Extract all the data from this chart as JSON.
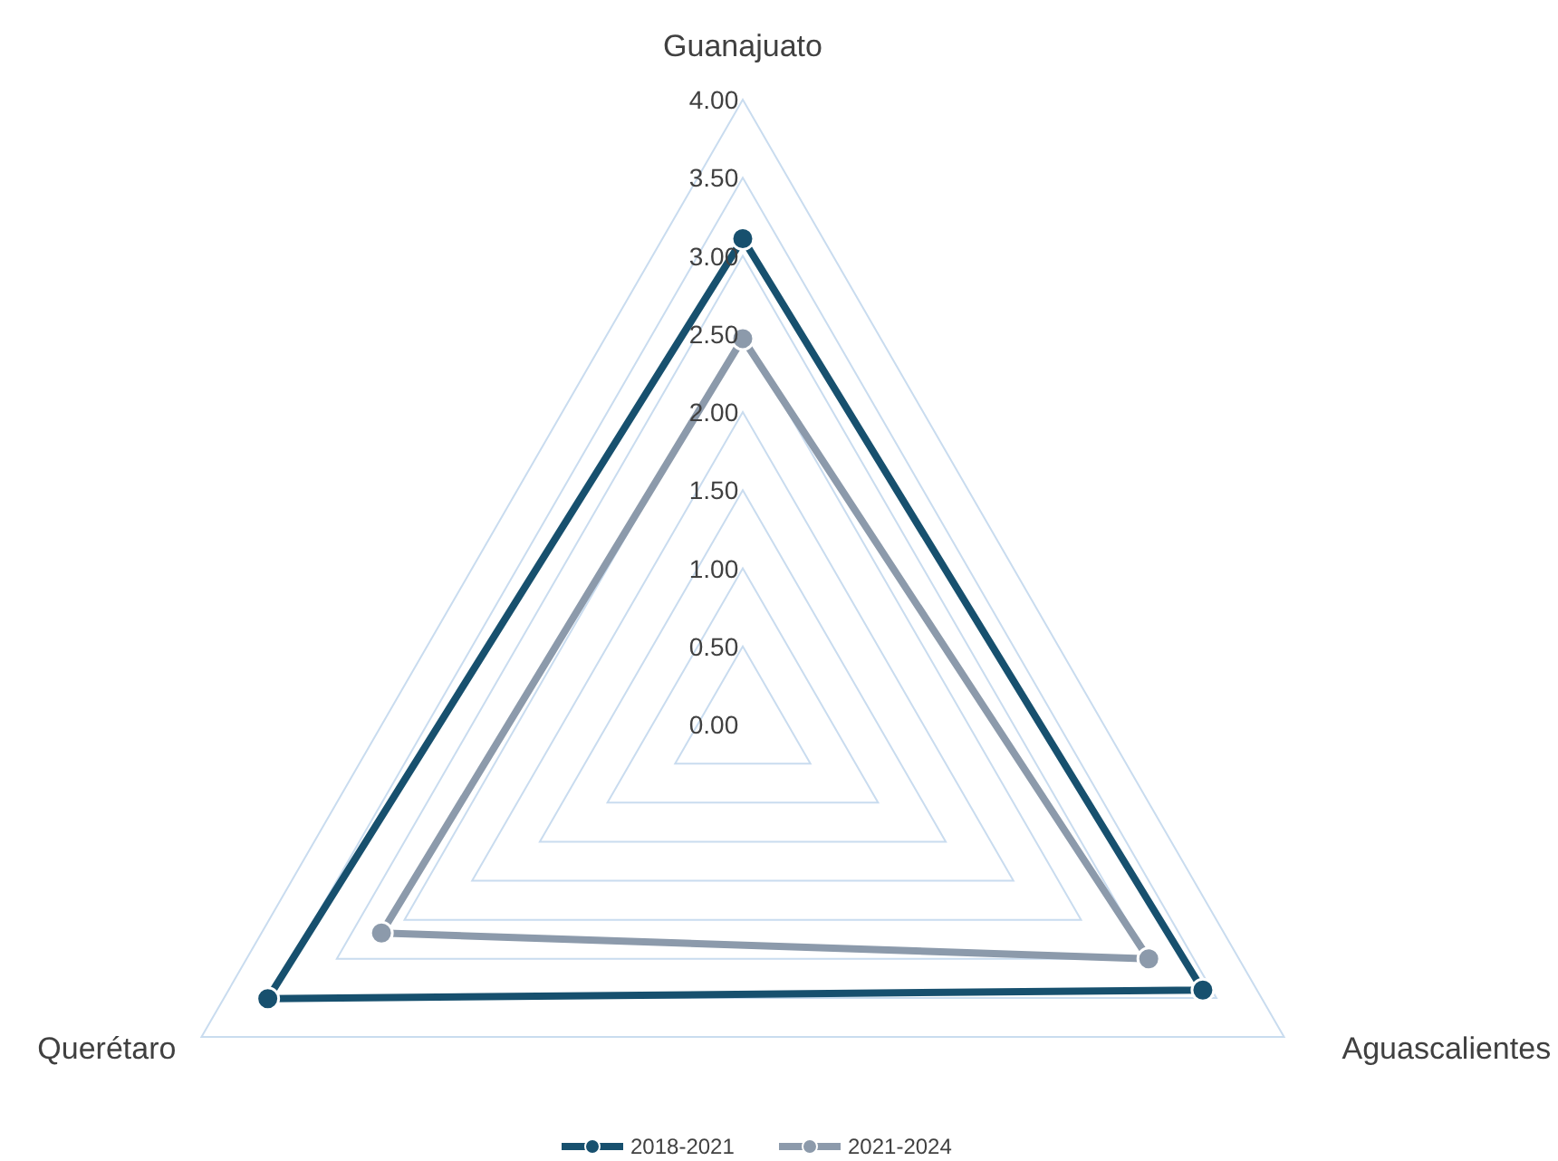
{
  "chart_data": {
    "type": "radar",
    "categories": [
      "Guanajuato",
      "Aguascalientes",
      "Querétaro"
    ],
    "series": [
      {
        "name": "2018-2021",
        "color": "#17506e",
        "values": [
          3.11,
          3.4,
          3.51
        ]
      },
      {
        "name": "2021-2024",
        "color": "#8c9aab",
        "values": [
          2.47,
          3.0,
          2.67
        ]
      }
    ],
    "ylim": [
      0,
      4
    ],
    "yticks": [
      {
        "value": 0,
        "label": "0.00"
      },
      {
        "value": 0.5,
        "label": "0.50"
      },
      {
        "value": 1,
        "label": "1.00"
      },
      {
        "value": 1.5,
        "label": "1.50"
      },
      {
        "value": 2,
        "label": "2.00"
      },
      {
        "value": 2.5,
        "label": "2.50"
      },
      {
        "value": 3,
        "label": "3.00"
      },
      {
        "value": 3.5,
        "label": "3.50"
      },
      {
        "value": 4,
        "label": "4.00"
      }
    ],
    "grid": true,
    "marker": "circle",
    "legend": "bottom"
  }
}
